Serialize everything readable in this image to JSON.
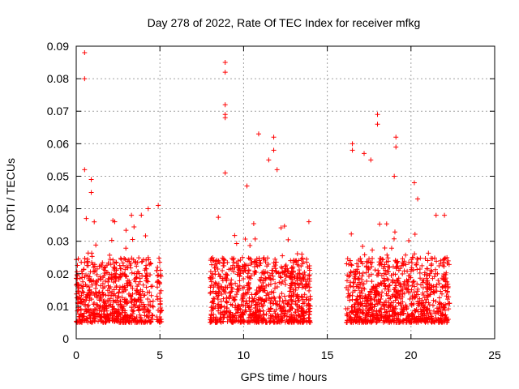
{
  "chart_data": {
    "type": "scatter",
    "title": "Day 278 of 2022, Rate Of TEC Index for receiver mfkg",
    "xlabel": "GPS time / hours",
    "ylabel": "ROTI / TECUs",
    "xlim": [
      0,
      25
    ],
    "ylim": [
      0,
      0.09
    ],
    "x_ticks": [
      "0",
      "5",
      "10",
      "15",
      "20",
      "25"
    ],
    "y_ticks": [
      "0",
      "0.01",
      "0.02",
      "0.03",
      "0.04",
      "0.05",
      "0.06",
      "0.07",
      "0.08",
      "0.09"
    ],
    "grid": true,
    "marker": "+",
    "color": "#ff0000",
    "data_segments_hours": [
      [
        0.0,
        4.6
      ],
      [
        4.8,
        5.1
      ],
      [
        8.0,
        14.0
      ],
      [
        16.1,
        22.3
      ]
    ],
    "baseline_roti": [
      0.005,
      0.025
    ],
    "outliers": [
      {
        "x": 0.5,
        "y": 0.088
      },
      {
        "x": 0.5,
        "y": 0.08
      },
      {
        "x": 0.5,
        "y": 0.052
      },
      {
        "x": 0.9,
        "y": 0.049
      },
      {
        "x": 0.9,
        "y": 0.045
      },
      {
        "x": 0.6,
        "y": 0.037
      },
      {
        "x": 2.3,
        "y": 0.036
      },
      {
        "x": 3.3,
        "y": 0.038
      },
      {
        "x": 4.3,
        "y": 0.04
      },
      {
        "x": 4.9,
        "y": 0.041
      },
      {
        "x": 8.9,
        "y": 0.085
      },
      {
        "x": 8.9,
        "y": 0.082
      },
      {
        "x": 8.9,
        "y": 0.072
      },
      {
        "x": 8.9,
        "y": 0.069
      },
      {
        "x": 8.9,
        "y": 0.068
      },
      {
        "x": 8.9,
        "y": 0.051
      },
      {
        "x": 10.9,
        "y": 0.063
      },
      {
        "x": 11.8,
        "y": 0.062
      },
      {
        "x": 11.8,
        "y": 0.058
      },
      {
        "x": 11.5,
        "y": 0.055
      },
      {
        "x": 12.0,
        "y": 0.052
      },
      {
        "x": 10.2,
        "y": 0.047
      },
      {
        "x": 13.9,
        "y": 0.036
      },
      {
        "x": 16.5,
        "y": 0.06
      },
      {
        "x": 16.5,
        "y": 0.058
      },
      {
        "x": 18.0,
        "y": 0.069
      },
      {
        "x": 18.0,
        "y": 0.066
      },
      {
        "x": 17.6,
        "y": 0.055
      },
      {
        "x": 17.2,
        "y": 0.057
      },
      {
        "x": 19.1,
        "y": 0.062
      },
      {
        "x": 19.1,
        "y": 0.059
      },
      {
        "x": 19.0,
        "y": 0.05
      },
      {
        "x": 20.2,
        "y": 0.048
      },
      {
        "x": 20.4,
        "y": 0.043
      },
      {
        "x": 21.5,
        "y": 0.038
      },
      {
        "x": 22.0,
        "y": 0.038
      }
    ]
  }
}
